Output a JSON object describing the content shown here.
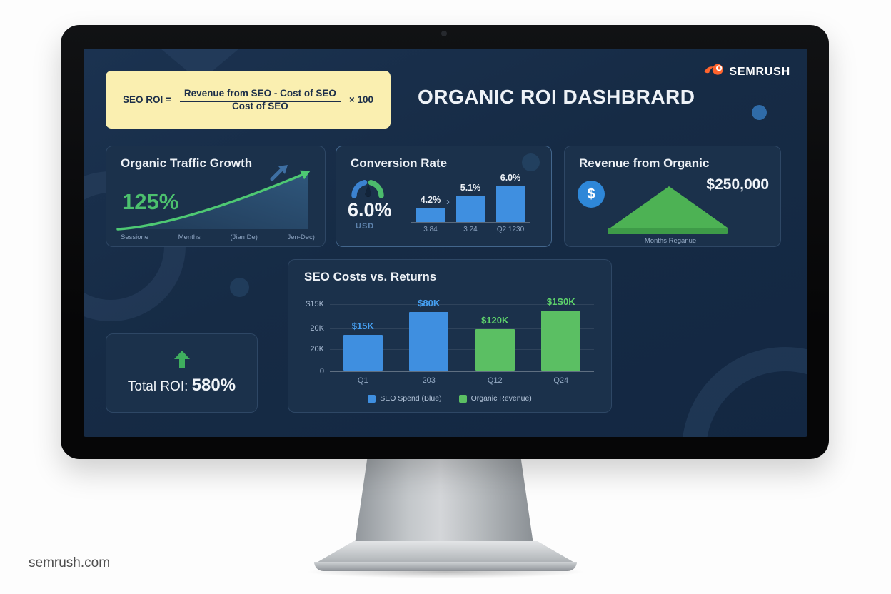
{
  "page": {
    "footer": "semrush.com"
  },
  "brand": {
    "name": "SEMRUSH"
  },
  "header": {
    "title": "ORGANIC ROI DASHBRARD"
  },
  "colors": {
    "screen_bg": "#162b45",
    "card_bg": "#1b314b",
    "formula_bg": "#faefb0",
    "accent_green": "#4cc06e",
    "accent_blue": "#3f8fe0",
    "bar_green": "#5bbf63",
    "dollar_blue": "#2e87d8",
    "logo_orange": "#ff642d"
  },
  "formula": {
    "lhs": "SEO ROI =",
    "numerator": "Revenue from SEO - Cost of SEO",
    "denominator": "Cost of SEO",
    "multiplier": "× 100"
  },
  "cards": {
    "traffic": {
      "title": "Organic Traffic Growth",
      "value": "125%",
      "x_labels": [
        "Sessione",
        "Menths",
        "(Jian De)",
        "Jen-Dec)"
      ]
    },
    "conversion": {
      "title": "Conversion Rate",
      "value": "6.0%",
      "unit": "USD",
      "trend_arrow": "›"
    },
    "revenue": {
      "title": "Revenue from Organic",
      "value": "$250,000",
      "icon_char": "$",
      "label": "Months Reganue"
    },
    "roi": {
      "label": "Total ROI:",
      "value": "580%"
    }
  },
  "chart_data": [
    {
      "id": "seo_costs_vs_returns",
      "type": "bar",
      "title": "SEO Costs vs. Returns",
      "categories": [
        "Q1",
        "203",
        "Q12",
        "Q24"
      ],
      "y_ticks": [
        "$15K",
        "20K",
        "20K",
        "0"
      ],
      "series": [
        {
          "name": "SEO Spend (Blue)",
          "color": "#3f8fe0"
        },
        {
          "name": "Organic Revenue)",
          "color": "#5bbf63"
        }
      ],
      "bars": [
        {
          "category": "Q1",
          "label": "$15K",
          "value_k": 15,
          "series": "SEO Spend (Blue)",
          "color": "#3f8fe0",
          "label_color": "#46a0f2",
          "height_pct": 60
        },
        {
          "category": "203",
          "label": "$80K",
          "value_k": 80,
          "series": "SEO Spend (Blue)",
          "color": "#3f8fe0",
          "label_color": "#46a0f2",
          "height_pct": 98
        },
        {
          "category": "Q12",
          "label": "$120K",
          "value_k": 120,
          "series": "Organic Revenue)",
          "color": "#5bbf63",
          "label_color": "#5ed36b",
          "height_pct": 69
        },
        {
          "category": "Q24",
          "label": "$1S0K",
          "value_k": 150,
          "series": "Organic Revenue)",
          "color": "#5bbf63",
          "label_color": "#5ed36b",
          "height_pct": 100
        }
      ],
      "legend": [
        "SEO Spend (Blue)",
        "Organic Revenue)"
      ],
      "legend_position": "bottom",
      "grid": true
    },
    {
      "id": "conversion_trend",
      "type": "bar",
      "categories": [
        "3.84",
        "3 24",
        "Q2 1230"
      ],
      "values": [
        4.2,
        5.1,
        6.0
      ],
      "value_labels": [
        "4.2%",
        "5.1%",
        "6.0%"
      ],
      "heights_pct": [
        39,
        73,
        100
      ],
      "bar_color": "#3f8fe0"
    },
    {
      "id": "organic_traffic_growth",
      "type": "line",
      "value": "125%",
      "x_labels": [
        "Sessione",
        "Menths",
        "(Jian De)",
        "Jen-Dec)"
      ],
      "trend": "up"
    }
  ]
}
